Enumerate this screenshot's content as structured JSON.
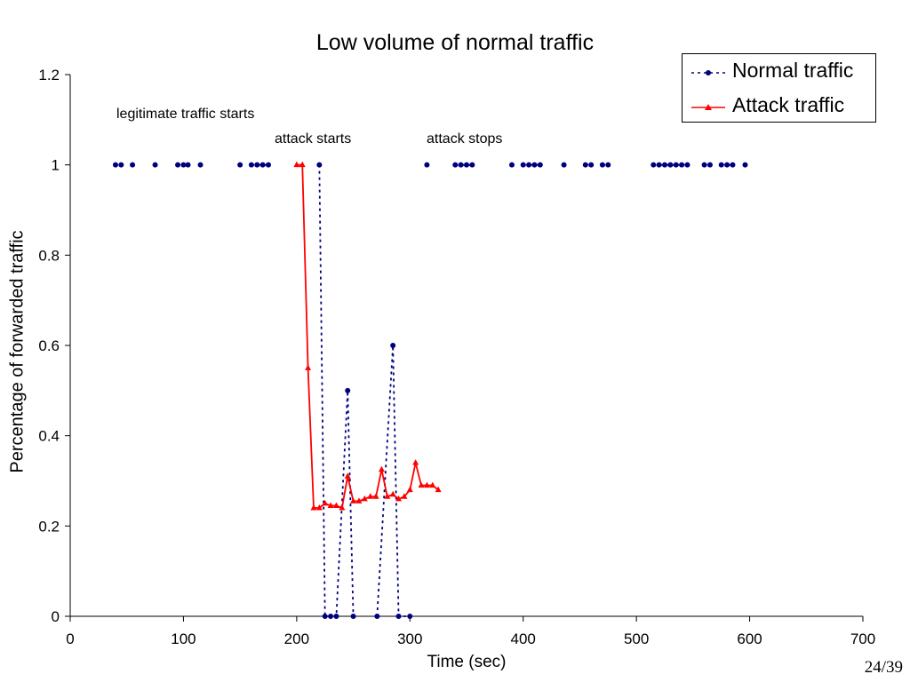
{
  "page_number": "24/39",
  "colors": {
    "normal": "#00007f",
    "attack": "#ff0000",
    "axis": "#000000"
  },
  "chart_data": {
    "type": "line",
    "title": "Low volume of normal traffic",
    "xlabel": "Time (sec)",
    "ylabel": "Percentage of forwarded traffic",
    "xlim": [
      0,
      700
    ],
    "ylim": [
      0,
      1.2
    ],
    "xticks": [
      "0",
      "100",
      "200",
      "300",
      "400",
      "500",
      "600",
      "700"
    ],
    "yticks": [
      "0",
      "0.2",
      "0.4",
      "0.6",
      "0.8",
      "1",
      "1.2"
    ],
    "grid": false,
    "legend_position": "top-right",
    "annotations": [
      {
        "text": "legitimate traffic starts",
        "x": 40,
        "y": 1.1
      },
      {
        "text": "attack starts",
        "x": 182,
        "y": 1.05
      },
      {
        "text": "attack stops",
        "x": 315,
        "y": 1.05
      }
    ],
    "series": [
      {
        "name": "Normal traffic",
        "style": "dotted-line-circle-markers",
        "color": "#00007f",
        "segments": [
          [
            [
              40,
              1
            ],
            [
              45,
              1
            ]
          ],
          [
            [
              55,
              1
            ]
          ],
          [
            [
              75,
              1
            ]
          ],
          [
            [
              95,
              1
            ],
            [
              100,
              1
            ],
            [
              104,
              1
            ]
          ],
          [
            [
              115,
              1
            ]
          ],
          [
            [
              150,
              1
            ]
          ],
          [
            [
              160,
              1
            ],
            [
              165,
              1
            ],
            [
              170,
              1
            ],
            [
              175,
              1
            ]
          ],
          [
            [
              220,
              1
            ],
            [
              225,
              0
            ],
            [
              230,
              0
            ],
            [
              235,
              0
            ],
            [
              245,
              0.5
            ],
            [
              250,
              0
            ]
          ],
          [
            [
              271,
              0
            ],
            [
              285,
              0.6
            ],
            [
              290,
              0
            ],
            [
              300,
              0
            ]
          ],
          [
            [
              315,
              1
            ]
          ],
          [
            [
              340,
              1
            ],
            [
              345,
              1
            ],
            [
              350,
              1
            ],
            [
              355,
              1
            ]
          ],
          [
            [
              390,
              1
            ]
          ],
          [
            [
              400,
              1
            ],
            [
              405,
              1
            ],
            [
              410,
              1
            ],
            [
              415,
              1
            ]
          ],
          [
            [
              436,
              1
            ]
          ],
          [
            [
              455,
              1
            ],
            [
              460,
              1
            ]
          ],
          [
            [
              470,
              1
            ],
            [
              475,
              1
            ]
          ],
          [
            [
              515,
              1
            ],
            [
              520,
              1
            ],
            [
              525,
              1
            ],
            [
              530,
              1
            ],
            [
              535,
              1
            ],
            [
              540,
              1
            ],
            [
              545,
              1
            ]
          ],
          [
            [
              560,
              1
            ],
            [
              565,
              1
            ]
          ],
          [
            [
              575,
              1
            ],
            [
              580,
              1
            ],
            [
              585,
              1
            ]
          ],
          [
            [
              596,
              1
            ]
          ]
        ]
      },
      {
        "name": "Attack traffic",
        "style": "solid-line-triangle-markers",
        "color": "#ff0000",
        "points": [
          [
            200,
            1
          ],
          [
            205,
            1
          ],
          [
            210,
            0.55
          ],
          [
            215,
            0.24
          ],
          [
            220,
            0.24
          ],
          [
            225,
            0.25
          ],
          [
            230,
            0.245
          ],
          [
            235,
            0.245
          ],
          [
            240,
            0.24
          ],
          [
            245,
            0.31
          ],
          [
            250,
            0.255
          ],
          [
            255,
            0.255
          ],
          [
            260,
            0.26
          ],
          [
            265,
            0.265
          ],
          [
            270,
            0.265
          ],
          [
            275,
            0.325
          ],
          [
            280,
            0.265
          ],
          [
            285,
            0.27
          ],
          [
            290,
            0.26
          ],
          [
            295,
            0.265
          ],
          [
            300,
            0.28
          ],
          [
            305,
            0.34
          ],
          [
            310,
            0.29
          ],
          [
            315,
            0.29
          ],
          [
            320,
            0.29
          ],
          [
            325,
            0.28
          ]
        ]
      }
    ]
  }
}
